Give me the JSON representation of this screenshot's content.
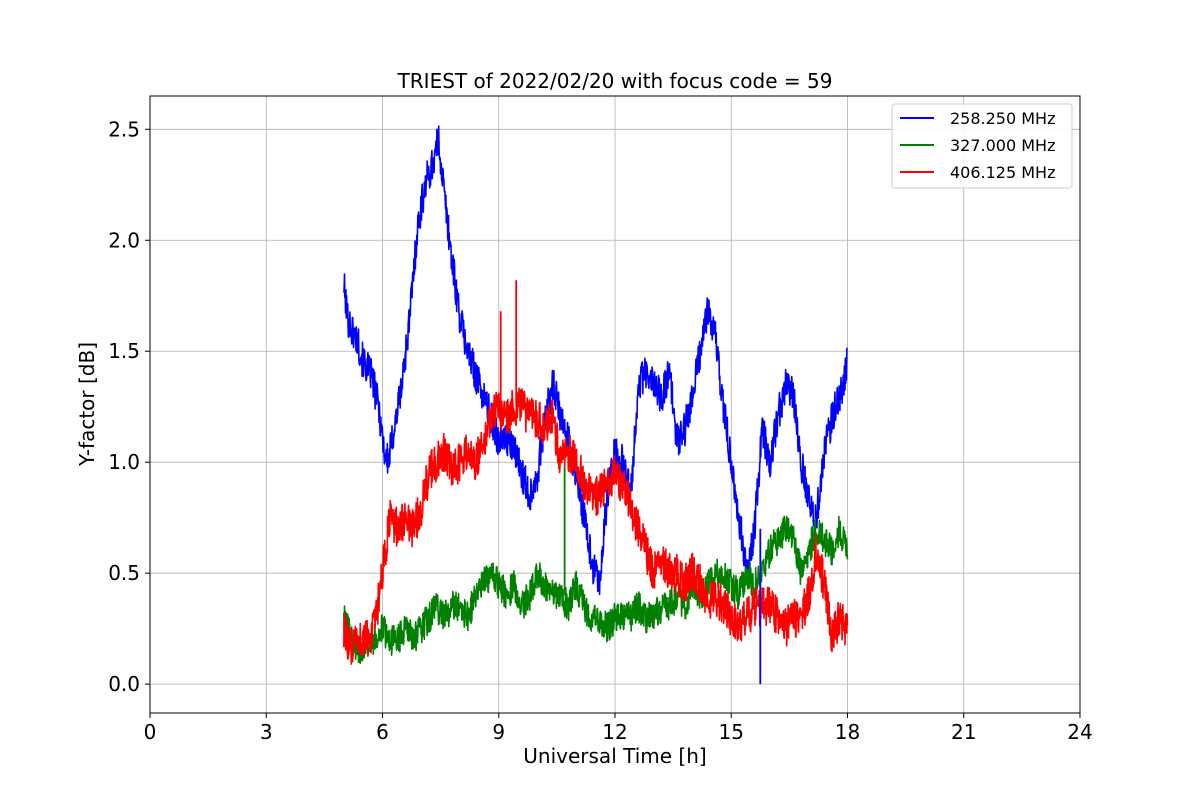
{
  "chart_data": {
    "type": "line",
    "title": "TRIEST of 2022/02/20 with focus code = 59",
    "xlabel": "Universal Time [h]",
    "ylabel": "Y-factor [dB]",
    "xlim": [
      0,
      24
    ],
    "ylim": [
      -0.13,
      2.65
    ],
    "xticks": [
      0,
      3,
      6,
      9,
      12,
      15,
      18,
      21,
      24
    ],
    "yticks": [
      0.0,
      0.5,
      1.0,
      1.5,
      2.0,
      2.5
    ],
    "ytick_labels": [
      "0.0",
      "0.5",
      "1.0",
      "1.5",
      "2.0",
      "2.5"
    ],
    "grid": true,
    "legend_position": "top-right",
    "series": [
      {
        "name": "258.250 MHz",
        "color": "#0000ff",
        "x": [
          5.0,
          5.1,
          5.2,
          5.35,
          5.5,
          5.7,
          5.9,
          6.05,
          6.15,
          6.3,
          6.5,
          6.7,
          6.9,
          7.1,
          7.3,
          7.45,
          7.6,
          7.8,
          8.0,
          8.2,
          8.4,
          8.6,
          8.8,
          9.0,
          9.2,
          9.4,
          9.6,
          9.8,
          10.0,
          10.2,
          10.4,
          10.6,
          10.8,
          11.0,
          11.2,
          11.4,
          11.6,
          11.8,
          12.0,
          12.2,
          12.4,
          12.6,
          12.8,
          13.0,
          13.2,
          13.4,
          13.6,
          13.8,
          14.0,
          14.2,
          14.4,
          14.6,
          14.8,
          15.0,
          15.2,
          15.4,
          15.6,
          15.8,
          16.0,
          16.2,
          16.4,
          16.6,
          16.8,
          17.0,
          17.2,
          17.4,
          17.6,
          17.8,
          18.0
        ],
        "values": [
          1.8,
          1.65,
          1.6,
          1.55,
          1.45,
          1.4,
          1.25,
          1.05,
          1.0,
          1.15,
          1.35,
          1.65,
          2.05,
          2.25,
          2.35,
          2.45,
          2.2,
          1.9,
          1.65,
          1.5,
          1.4,
          1.3,
          1.2,
          1.1,
          1.1,
          1.05,
          0.95,
          0.85,
          0.95,
          1.2,
          1.35,
          1.2,
          1.1,
          0.95,
          0.75,
          0.55,
          0.45,
          0.85,
          1.05,
          1.0,
          0.85,
          1.35,
          1.4,
          1.35,
          1.3,
          1.4,
          1.1,
          1.15,
          1.3,
          1.5,
          1.7,
          1.55,
          1.25,
          1.0,
          0.75,
          0.5,
          0.7,
          1.15,
          1.0,
          1.2,
          1.35,
          1.3,
          1.0,
          0.85,
          0.75,
          1.05,
          1.2,
          1.3,
          1.45
        ],
        "spread": 0.08
      },
      {
        "name": "327.000 MHz",
        "color": "#008000",
        "x": [
          5.0,
          5.2,
          5.4,
          5.6,
          5.8,
          6.0,
          6.2,
          6.4,
          6.6,
          6.8,
          7.0,
          7.2,
          7.4,
          7.6,
          7.8,
          8.0,
          8.2,
          8.4,
          8.6,
          8.8,
          9.0,
          9.2,
          9.4,
          9.6,
          9.8,
          10.0,
          10.2,
          10.4,
          10.6,
          10.8,
          11.0,
          11.2,
          11.4,
          11.6,
          11.8,
          12.0,
          12.2,
          12.4,
          12.6,
          12.8,
          13.0,
          13.2,
          13.4,
          13.6,
          13.8,
          14.0,
          14.2,
          14.4,
          14.6,
          14.8,
          15.0,
          15.2,
          15.4,
          15.6,
          15.8,
          16.0,
          16.2,
          16.4,
          16.6,
          16.8,
          17.0,
          17.2,
          17.4,
          17.6,
          17.8,
          18.0
        ],
        "values": [
          0.3,
          0.2,
          0.15,
          0.2,
          0.2,
          0.25,
          0.2,
          0.2,
          0.25,
          0.2,
          0.25,
          0.3,
          0.35,
          0.3,
          0.35,
          0.35,
          0.3,
          0.4,
          0.45,
          0.5,
          0.45,
          0.4,
          0.45,
          0.35,
          0.4,
          0.5,
          0.45,
          0.4,
          0.4,
          0.35,
          0.45,
          0.35,
          0.3,
          0.3,
          0.25,
          0.3,
          0.3,
          0.3,
          0.35,
          0.3,
          0.3,
          0.35,
          0.35,
          0.4,
          0.35,
          0.45,
          0.4,
          0.45,
          0.5,
          0.5,
          0.45,
          0.4,
          0.5,
          0.45,
          0.5,
          0.6,
          0.65,
          0.7,
          0.65,
          0.5,
          0.6,
          0.7,
          0.65,
          0.6,
          0.7,
          0.6
        ],
        "spread": 0.07
      },
      {
        "name": "406.125 MHz",
        "color": "#ff0000",
        "x": [
          5.0,
          5.2,
          5.4,
          5.6,
          5.8,
          6.0,
          6.2,
          6.4,
          6.6,
          6.8,
          7.0,
          7.2,
          7.4,
          7.6,
          7.8,
          8.0,
          8.2,
          8.4,
          8.6,
          8.8,
          9.0,
          9.2,
          9.4,
          9.6,
          9.8,
          10.0,
          10.2,
          10.4,
          10.6,
          10.8,
          11.0,
          11.2,
          11.4,
          11.6,
          11.8,
          12.0,
          12.2,
          12.4,
          12.6,
          12.8,
          13.0,
          13.2,
          13.4,
          13.6,
          13.8,
          14.0,
          14.2,
          14.4,
          14.6,
          14.8,
          15.0,
          15.2,
          15.4,
          15.6,
          15.8,
          16.0,
          16.2,
          16.4,
          16.6,
          16.8,
          17.0,
          17.2,
          17.4,
          17.6,
          17.8,
          18.0
        ],
        "values": [
          0.25,
          0.15,
          0.2,
          0.2,
          0.25,
          0.5,
          0.75,
          0.7,
          0.75,
          0.7,
          0.8,
          0.95,
          1.0,
          1.05,
          0.95,
          1.0,
          1.05,
          1.0,
          1.1,
          1.2,
          1.25,
          1.2,
          1.25,
          1.25,
          1.2,
          1.2,
          1.15,
          1.2,
          1.0,
          1.05,
          1.0,
          0.9,
          0.85,
          0.85,
          0.9,
          0.95,
          0.9,
          0.8,
          0.7,
          0.6,
          0.5,
          0.55,
          0.5,
          0.5,
          0.45,
          0.5,
          0.45,
          0.35,
          0.4,
          0.35,
          0.3,
          0.25,
          0.3,
          0.35,
          0.35,
          0.35,
          0.3,
          0.25,
          0.3,
          0.3,
          0.4,
          0.6,
          0.45,
          0.2,
          0.3,
          0.25
        ],
        "spread": 0.09
      }
    ],
    "annotations": [
      {
        "series": "406.125 MHz",
        "x": 9.05,
        "y": 1.68
      },
      {
        "series": "406.125 MHz",
        "x": 9.45,
        "y": 1.82
      },
      {
        "series": "327.000 MHz",
        "x": 10.7,
        "y": 0.98
      },
      {
        "series": "258.250 MHz",
        "x": 15.75,
        "y": 0.0
      }
    ]
  }
}
